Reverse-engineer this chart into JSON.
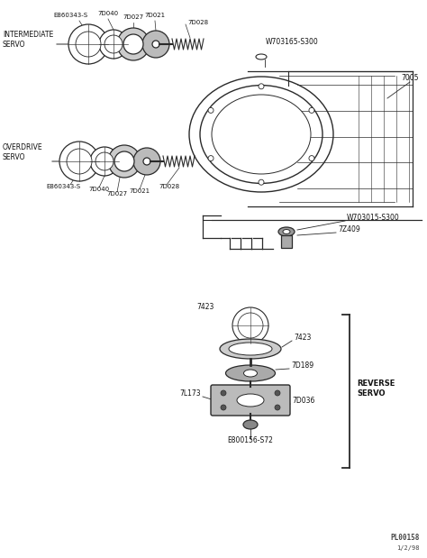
{
  "bg_color": "#ffffff",
  "line_color": "#2a2a2a",
  "text_color": "#111111",
  "fig_width": 4.74,
  "fig_height": 6.19,
  "watermark": "PL00158",
  "watermark_date": "1/2/98",
  "labels": {
    "intermediate_servo": "INTERMEDIATE\nSERVO",
    "overdrive_servo": "OVERDRIVE\nSERVO",
    "reverse_servo": "REVERSE\nSERVO",
    "E860343_S_top": "E860343-S",
    "7D040_top": "7D040",
    "7D027_top": "7D027",
    "7D021_top": "7D021",
    "7D028_top": "7D028",
    "E860343_S_bot": "E860343-S",
    "7D040_bot": "7D040",
    "7D027_bot": "7D027",
    "7D021_bot": "7D021",
    "7D028_bot": "7D028",
    "W703165_S300": "W703165-S300",
    "7005": "7005",
    "W703015_S300": "W703015-S300",
    "7Z409": "7Z409",
    "7423_top": "7423",
    "7423_bot": "7423",
    "7D189": "7D189",
    "7L173": "7L173",
    "7D036": "7D036",
    "E800156_S72": "E800156-S72"
  }
}
